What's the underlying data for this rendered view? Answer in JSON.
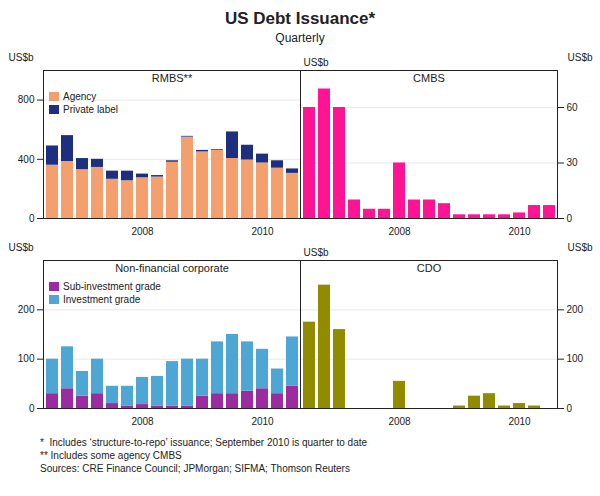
{
  "title": "US Debt Issuance*",
  "subtitle": "Quarterly",
  "annotations": [
    "*  Includes ‘structure-to-repo’ issuance; September 2010 is quarter to date",
    "** Includes some agency CMBS",
    "Sources: CRE Finance Council; JPMorgan; SIFMA; Thomson Reuters"
  ],
  "chart_data": [
    {
      "type": "bar",
      "title": "RMBS**",
      "stacked": true,
      "categories": [
        null,
        null,
        null,
        null,
        null,
        null,
        "2008",
        null,
        null,
        null,
        null,
        null,
        null,
        null,
        "2010",
        null,
        null
      ],
      "series": [
        {
          "name": "Agency",
          "color": "#f4a06e",
          "values": [
            360,
            385,
            330,
            345,
            265,
            255,
            275,
            280,
            380,
            550,
            450,
            460,
            405,
            395,
            375,
            340,
            305
          ]
        },
        {
          "name": "Private label",
          "color": "#1f2f80",
          "values": [
            130,
            175,
            75,
            55,
            55,
            65,
            25,
            10,
            10,
            5,
            10,
            5,
            180,
            100,
            60,
            50,
            30
          ]
        }
      ],
      "ylabel": "US$b",
      "ylim": [
        0,
        1000
      ],
      "yticks": [
        0,
        400,
        800
      ],
      "grid": true,
      "legend": "top-left"
    },
    {
      "type": "bar",
      "title": "CMBS",
      "categories": [
        null,
        null,
        null,
        null,
        null,
        null,
        "2008",
        null,
        null,
        null,
        null,
        null,
        null,
        null,
        "2010",
        null,
        null
      ],
      "values": [
        60,
        70,
        60,
        10,
        5,
        5,
        30,
        10,
        10,
        8,
        2,
        2,
        2,
        2,
        3,
        7,
        7
      ],
      "color": "#ff1493",
      "ylabel": "US$b",
      "ylim": [
        0,
        80
      ],
      "yticks": [
        0,
        30,
        60
      ],
      "grid": true,
      "annotations": [
        "US$b"
      ]
    },
    {
      "type": "bar",
      "title": "Non-financial corporate",
      "stacked": true,
      "categories": [
        null,
        null,
        null,
        null,
        null,
        null,
        "2008",
        null,
        null,
        null,
        null,
        null,
        null,
        null,
        "2010",
        null,
        null
      ],
      "series": [
        {
          "name": "Sub-investment grade",
          "color": "#9b2ca0",
          "values": [
            30,
            40,
            25,
            30,
            10,
            5,
            8,
            5,
            5,
            5,
            25,
            30,
            30,
            35,
            40,
            30,
            45
          ]
        },
        {
          "name": "Investment grade",
          "color": "#4da6d4",
          "values": [
            70,
            85,
            50,
            70,
            35,
            40,
            55,
            60,
            90,
            95,
            75,
            105,
            120,
            100,
            80,
            50,
            100
          ]
        }
      ],
      "ylabel": "US$b",
      "ylim": [
        0,
        300
      ],
      "yticks": [
        0,
        100,
        200
      ],
      "grid": true,
      "legend": "top-left"
    },
    {
      "type": "bar",
      "title": "CDO",
      "categories": [
        null,
        null,
        null,
        null,
        null,
        null,
        "2008",
        null,
        null,
        null,
        null,
        null,
        null,
        null,
        "2010",
        null,
        null
      ],
      "values": [
        175,
        250,
        160,
        0,
        0,
        0,
        55,
        0,
        0,
        0,
        5,
        25,
        30,
        5,
        10,
        5,
        0
      ],
      "color": "#918b00",
      "ylabel": "US$b",
      "ylim": [
        0,
        300
      ],
      "yticks": [
        0,
        100,
        200
      ],
      "grid": true,
      "annotations": [
        "US$b"
      ]
    }
  ]
}
